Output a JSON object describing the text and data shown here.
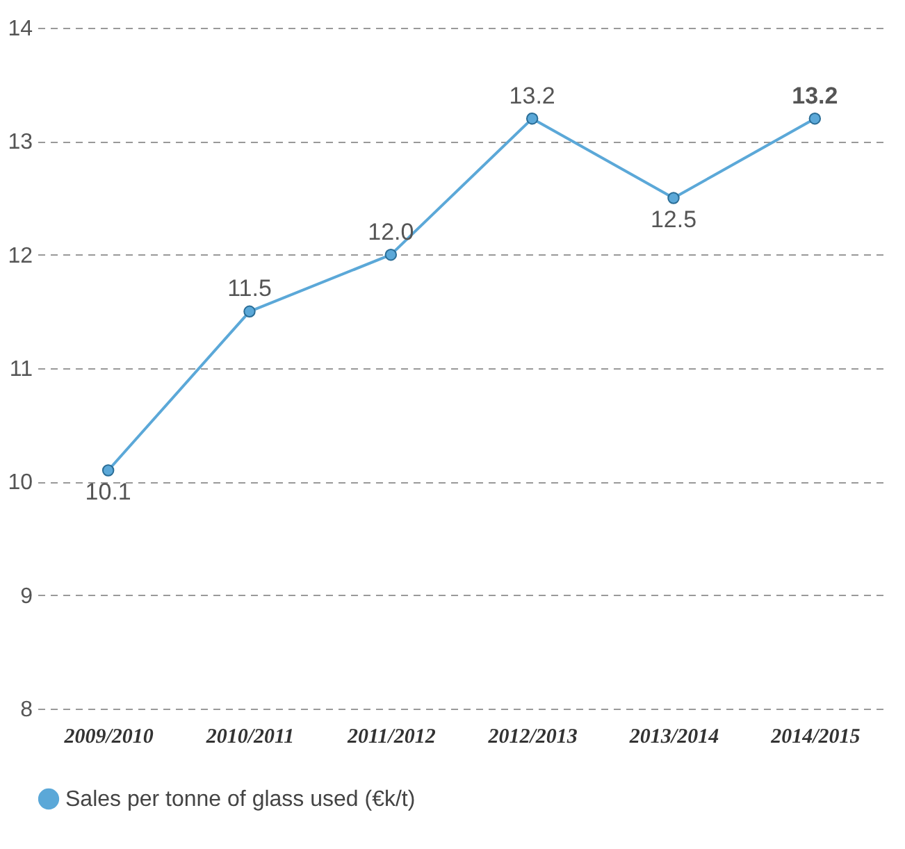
{
  "chart_data": {
    "type": "line",
    "categories": [
      "2009/2010",
      "2010/2011",
      "2011/2012",
      "2012/2013",
      "2013/2014",
      "2014/2015"
    ],
    "series": [
      {
        "name": "Sales per tonne of glass used (€k/t)",
        "color": "#5ba8d8",
        "values": [
          10.1,
          11.5,
          12.0,
          13.2,
          12.5,
          13.2
        ],
        "value_labels": [
          "10.1",
          "11.5",
          "12.0",
          "13.2",
          "12.5",
          "13.2"
        ]
      }
    ],
    "ylim": [
      8,
      14
    ],
    "yticks": [
      8,
      9,
      10,
      11,
      12,
      13,
      14
    ],
    "grid": "y",
    "legend": "bottom",
    "marker": "circle",
    "line_style": "solid"
  }
}
